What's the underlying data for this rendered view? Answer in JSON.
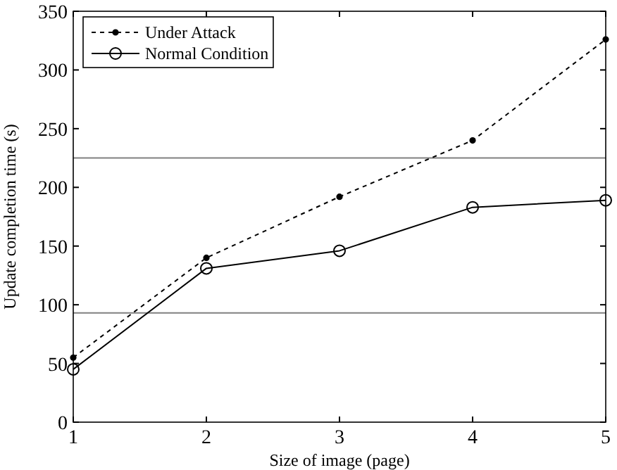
{
  "chart_data": {
    "type": "line",
    "xlabel": "Size of image (page)",
    "ylabel": "Update completion time (s)",
    "x": [
      1,
      2,
      3,
      4,
      5
    ],
    "series": [
      {
        "name": "Under Attack",
        "color": "#000000",
        "values": [
          55,
          140,
          192,
          240,
          326
        ],
        "marker": "circle",
        "line_style": "dashed"
      },
      {
        "name": "Normal Condition",
        "color": "#000000",
        "values": [
          45,
          131,
          146,
          183,
          189
        ],
        "marker": "circle",
        "line_style": "solid"
      }
    ],
    "xlim": [
      1,
      5
    ],
    "xticks": [
      1,
      2,
      3,
      4,
      5
    ],
    "ylim": [
      0,
      350
    ],
    "yticks": [
      0,
      50,
      100,
      150,
      200,
      250,
      300,
      350
    ],
    "ref_lines": [
      {
        "axis": "y",
        "value": 93,
        "color": "#808080"
      },
      {
        "axis": "y",
        "value": 225,
        "color": "#808080"
      }
    ],
    "grid": false,
    "legend": "top left"
  }
}
